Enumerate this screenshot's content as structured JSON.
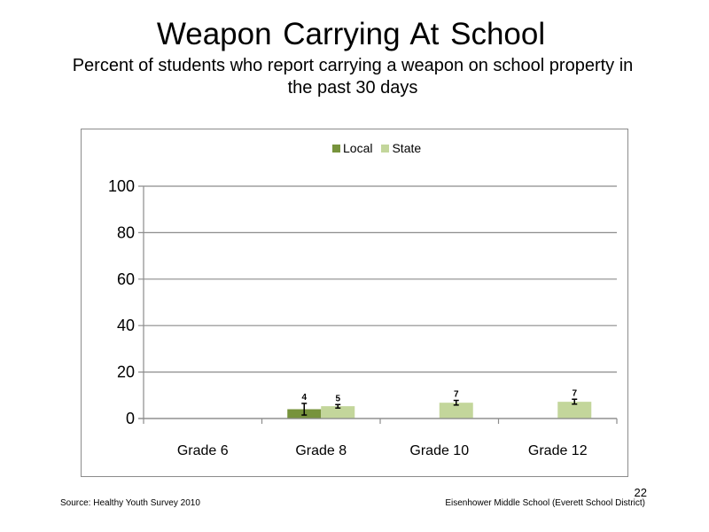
{
  "slide": {
    "title": "Weapon Carrying At School",
    "subtitle": "Percent of students who report carrying a weapon on school property in the past 30 days",
    "source": "Source: Healthy Youth Survey 2010",
    "school": "Eisenhower Middle School (Everett School District)",
    "page_number": "22"
  },
  "chart_data": {
    "type": "bar",
    "title": "",
    "xlabel": "",
    "ylabel": "",
    "ylim": [
      0,
      100
    ],
    "yticks": [
      0,
      20,
      40,
      60,
      80,
      100
    ],
    "grid": true,
    "legend_position": "top-center",
    "categories": [
      "Grade 6",
      "Grade 8",
      "Grade 10",
      "Grade 12"
    ],
    "series": [
      {
        "name": "Local",
        "color": "#77933c",
        "values": [
          null,
          4,
          null,
          null
        ],
        "labels": [
          "",
          "4",
          "",
          ""
        ],
        "error_low": [
          null,
          1.5,
          null,
          null
        ],
        "error_high": [
          null,
          6.5,
          null,
          null
        ]
      },
      {
        "name": "State",
        "color": "#c3d69b",
        "values": [
          null,
          5.3,
          6.8,
          7.2
        ],
        "labels": [
          "",
          "5",
          "7",
          "7"
        ],
        "error_low": [
          null,
          4.5,
          5.8,
          6.2
        ],
        "error_high": [
          null,
          6.0,
          7.8,
          8.3
        ]
      }
    ]
  }
}
